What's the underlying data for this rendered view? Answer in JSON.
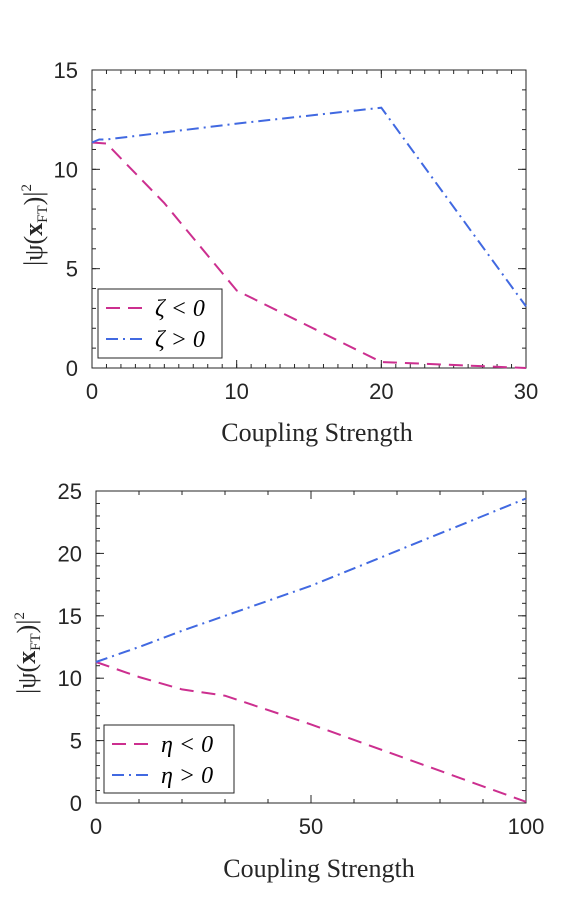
{
  "chart_data": [
    {
      "type": "line",
      "title": "",
      "xlabel": "Coupling Strength",
      "ylabel": "|ψ(x_FT)|²",
      "ylabel_parts": {
        "open": "|ψ(",
        "vec": "x",
        "sub": "FT",
        "close": ")|",
        "sup": "2"
      },
      "xlim": [
        0,
        30
      ],
      "ylim": [
        0,
        15
      ],
      "xticks": [
        0,
        10,
        20,
        30
      ],
      "yticks": [
        0,
        5,
        10,
        15
      ],
      "grid": false,
      "legend_location": "bottom-left",
      "series": [
        {
          "name": "ζ < 0",
          "color": "#cc2f8f",
          "style": "dashed",
          "x": [
            0,
            1,
            5,
            10,
            20,
            30
          ],
          "y": [
            11.35,
            11.3,
            8.3,
            3.9,
            0.3,
            0.0
          ]
        },
        {
          "name": "ζ > 0",
          "color": "#4169e1",
          "style": "dashdot",
          "x": [
            0,
            0.5,
            1,
            10,
            20,
            30
          ],
          "y": [
            11.35,
            11.5,
            11.5,
            12.3,
            13.1,
            3.1
          ]
        }
      ]
    },
    {
      "type": "line",
      "title": "",
      "xlabel": "Coupling Strength",
      "ylabel": "|ψ(x_FT)|²",
      "ylabel_parts": {
        "open": "|ψ(",
        "vec": "x",
        "sub": "FT",
        "close": ")|",
        "sup": "2"
      },
      "xlim": [
        0,
        100
      ],
      "ylim": [
        0,
        25
      ],
      "xticks": [
        0,
        50,
        100
      ],
      "yticks": [
        0,
        5,
        10,
        15,
        20,
        25
      ],
      "grid": false,
      "legend_location": "bottom-left",
      "series": [
        {
          "name": "η < 0",
          "color": "#cc2f8f",
          "style": "dashed",
          "x": [
            0,
            10,
            20,
            30,
            50,
            100
          ],
          "y": [
            11.3,
            10.1,
            9.1,
            8.6,
            6.3,
            0.1
          ]
        },
        {
          "name": "η > 0",
          "color": "#4169e1",
          "style": "dashdot",
          "x": [
            0,
            10,
            20,
            30,
            50,
            70,
            100
          ],
          "y": [
            11.3,
            12.5,
            13.8,
            15.0,
            17.4,
            20.2,
            24.4
          ]
        }
      ]
    }
  ]
}
